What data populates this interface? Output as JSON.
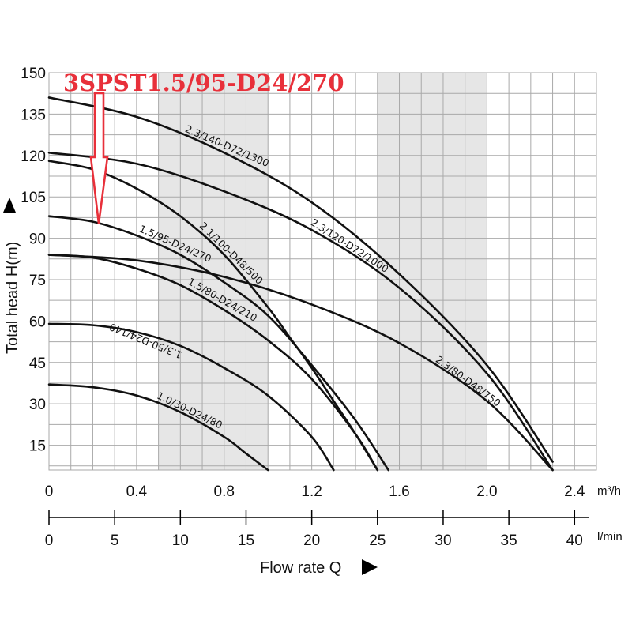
{
  "chart_data": {
    "type": "line",
    "title": "3SPST1.5/95-D24/270",
    "ylabel": "Total head H(m)",
    "xlabel": "Flow rate Q",
    "x_unit": "m³/h",
    "x2_unit": "l/min",
    "xlim": [
      0,
      2.5
    ],
    "ylim": [
      6,
      150
    ],
    "x_ticks": [
      0,
      0.4,
      0.8,
      1.2,
      1.6,
      2.0,
      2.4
    ],
    "x_tick_labels": [
      "0",
      "0.4",
      "0.8",
      "1.2",
      "1.6",
      "2.0",
      "2.4"
    ],
    "x2_ticks": [
      0,
      5,
      10,
      15,
      20,
      25,
      30,
      35,
      40
    ],
    "y_ticks": [
      15,
      30,
      45,
      60,
      75,
      90,
      105,
      120,
      135,
      150
    ],
    "grid": true,
    "shaded_bands": [
      [
        0.5,
        1.0
      ],
      [
        1.5,
        2.0
      ]
    ],
    "highlight_color": "#e8303a",
    "highlight_series": "1.5/95-D24/270",
    "series": [
      {
        "name": "1.0/30-D24/80",
        "x": [
          0,
          0.2,
          0.4,
          0.6,
          0.8,
          0.9,
          1.0
        ],
        "y": [
          37,
          36,
          33,
          27,
          18,
          12,
          6
        ]
      },
      {
        "name": "1.3/50-D24/140",
        "x": [
          0,
          0.2,
          0.4,
          0.6,
          0.8,
          1.0,
          1.2,
          1.3
        ],
        "y": [
          59,
          58.5,
          56,
          51,
          43,
          33,
          18,
          6
        ]
      },
      {
        "name": "1.5/80-D24/210",
        "x": [
          0,
          0.2,
          0.4,
          0.6,
          0.8,
          1.0,
          1.2,
          1.4,
          1.5
        ],
        "y": [
          84,
          83,
          79,
          73,
          64,
          53,
          39,
          19,
          6
        ]
      },
      {
        "name": "1.5/95-D24/270",
        "x": [
          0,
          0.2,
          0.4,
          0.6,
          0.8,
          1.0,
          1.2,
          1.4,
          1.55
        ],
        "y": [
          98,
          96,
          91,
          84,
          74,
          62,
          44,
          24,
          6
        ]
      },
      {
        "name": "2.1/100-D48/500",
        "x": [
          0,
          0.2,
          0.4,
          0.6,
          0.8,
          1.0,
          1.1,
          1.2,
          1.3,
          1.4,
          1.5
        ],
        "y": [
          118,
          115,
          108,
          98,
          84,
          65,
          54,
          43,
          31,
          19,
          6
        ]
      },
      {
        "name": "2.3/80-D48/750",
        "x": [
          0,
          0.4,
          0.8,
          1.2,
          1.6,
          2.0,
          2.3
        ],
        "y": [
          84,
          82,
          76,
          66,
          52,
          31,
          6
        ]
      },
      {
        "name": "2.3/120-D72/1000",
        "x": [
          0,
          0.4,
          0.8,
          1.2,
          1.6,
          2.0,
          2.3
        ],
        "y": [
          121,
          117,
          107,
          93,
          72,
          41,
          6
        ]
      },
      {
        "name": "2.3/140-D72/1300",
        "x": [
          0,
          0.4,
          0.8,
          1.2,
          1.6,
          2.0,
          2.3
        ],
        "y": [
          141,
          134,
          121,
          103,
          77,
          44,
          9
        ]
      }
    ]
  }
}
